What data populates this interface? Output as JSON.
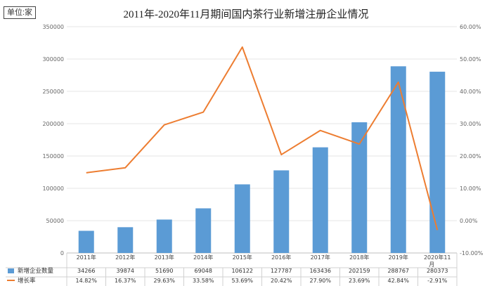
{
  "unit_label": "单位:家",
  "chart_data": {
    "type": "bar",
    "title": "2011年-2020年11月期间国内茶行业新增注册企业情况",
    "categories": [
      "2011年",
      "2012年",
      "2013年",
      "2014年",
      "2015年",
      "2016年",
      "2017年",
      "2018年",
      "2019年",
      "2020年11月"
    ],
    "series": [
      {
        "name": "新增企业数量",
        "type": "bar",
        "axis": "left",
        "color": "#5B9BD5",
        "values": [
          34266,
          39874,
          51690,
          69048,
          106122,
          127787,
          163436,
          202159,
          288767,
          280373
        ]
      },
      {
        "name": "增长率",
        "type": "line",
        "axis": "right",
        "color": "#ED7D31",
        "values": [
          14.82,
          16.37,
          29.63,
          33.58,
          53.69,
          20.42,
          27.9,
          23.69,
          42.84,
          -2.91
        ]
      }
    ],
    "ylim_left": [
      0,
      350000
    ],
    "yticks_left": [
      "0",
      "50000",
      "100000",
      "150000",
      "200000",
      "250000",
      "300000",
      "350000"
    ],
    "ylim_right": [
      -10,
      60
    ],
    "yticks_right": [
      "-10.00%",
      "0.00%",
      "10.00%",
      "20.00%",
      "30.00%",
      "40.00%",
      "50.00%",
      "60.00%"
    ],
    "table_rows": [
      {
        "label": "新增企业数量",
        "cells": [
          "34266",
          "39874",
          "51690",
          "69048",
          "106122",
          "127787",
          "163436",
          "202159",
          "288767",
          "280373"
        ]
      },
      {
        "label": "增长率",
        "cells": [
          "14.82%",
          "16.37%",
          "29.63%",
          "33.58%",
          "53.69%",
          "20.42%",
          "27.90%",
          "23.69%",
          "42.84%",
          "-2.91%"
        ]
      }
    ],
    "grid": true,
    "legend": "bottom-table"
  }
}
